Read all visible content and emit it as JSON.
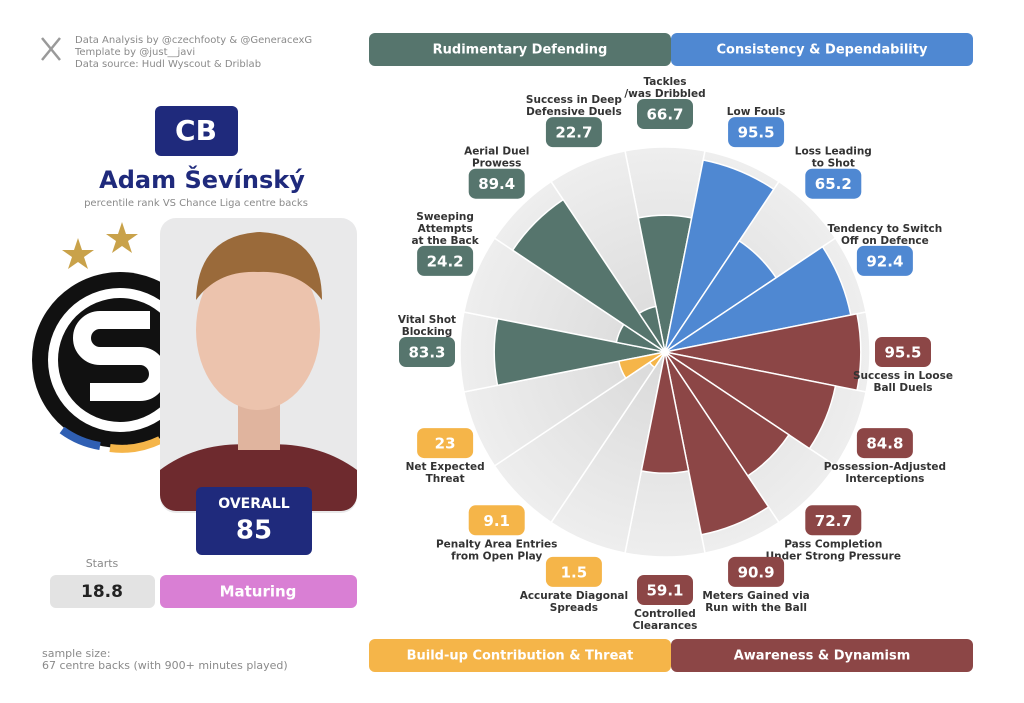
{
  "header": {
    "credits": [
      "Data Analysis by @czechfooty & @GeneracexG",
      "Template by @just__javi",
      "Data source: Hudl Wyscout & Driblab"
    ]
  },
  "player": {
    "position": "CB",
    "name": "Adam Ševínský",
    "subtitle": "percentile rank VS Chance Liga centre backs",
    "overall_label": "OVERALL",
    "overall": 85,
    "starts_label": "Starts",
    "starts": 18.8,
    "status": "Maturing"
  },
  "footer": {
    "sample_size": [
      "sample size:",
      "67 centre backs (with 900+ minutes played)"
    ]
  },
  "chart_data": {
    "type": "polar-bar",
    "categories": [
      "Tackles\n/was Dribbled",
      "Low Fouls",
      "Loss Leading\nto Shot",
      "Tendency to Switch\nOff on Defence",
      "Success in Loose\nBall Duels",
      "Possession-Adjusted\nInterceptions",
      "Pass Completion\nUnder Strong Pressure",
      "Meters Gained via\nRun with the Ball",
      "Controlled\nClearances",
      "Accurate Diagonal\nSpreads",
      "Penalty Area Entries\nfrom Open Play",
      "Net Expected\nThreat",
      "Vital Shot\nBlocking",
      "Sweeping\nAttempts\nat the Back",
      "Aerial Duel\nProwess",
      "Success in Deep\nDefensive Duels"
    ],
    "ylim": [
      0,
      100
    ],
    "series": [
      {
        "name": "Rudimentary Defending",
        "color": "#56756d",
        "values": [
          66.7,
          null,
          null,
          null,
          null,
          null,
          null,
          null,
          null,
          null,
          null,
          null,
          83.3,
          24.2,
          89.4,
          22.7
        ]
      },
      {
        "name": "Consistency & Dependability",
        "color": "#4f88d2",
        "values": [
          null,
          95.5,
          65.2,
          92.4,
          null,
          null,
          null,
          null,
          null,
          null,
          null,
          null,
          null,
          null,
          null,
          null
        ]
      },
      {
        "name": "Build-up Contribution & Threat",
        "color": "#f5b549",
        "values": [
          null,
          null,
          null,
          null,
          null,
          null,
          null,
          null,
          null,
          1.5,
          9.1,
          23,
          null,
          null,
          null,
          null
        ]
      },
      {
        "name": "Awareness & Dynamism",
        "color": "#8c4646",
        "values": [
          null,
          null,
          null,
          null,
          95.5,
          84.8,
          72.7,
          90.9,
          59.1,
          null,
          null,
          null,
          null,
          null,
          null,
          null
        ]
      }
    ]
  }
}
